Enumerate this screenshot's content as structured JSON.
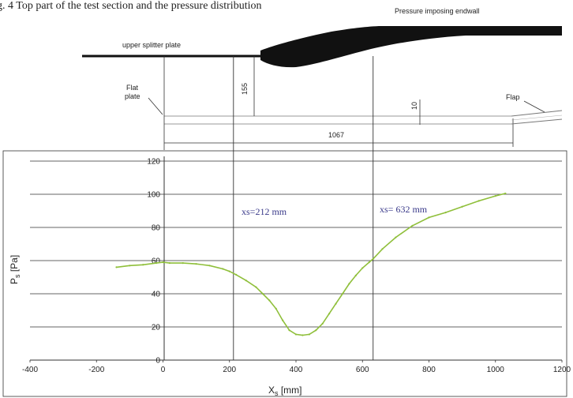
{
  "header_fragment": "g. 4   Top  part of the test section and the  pressure distribution",
  "sketch": {
    "labels": {
      "endwall": "Pressure imposing endwall",
      "splitter": "upper splitter plate",
      "flat_plate_line1": "Flat",
      "flat_plate_line2": "plate",
      "flap": "Flap",
      "dim_155": "155",
      "dim_10": "10",
      "dim_1067": "1067"
    }
  },
  "chart_data": {
    "type": "line",
    "title": "",
    "xlabel_main": "X",
    "xlabel_sub": "s",
    "xlabel_unit": " [mm]",
    "ylabel_main": "P",
    "ylabel_sub": "s",
    "ylabel_unit": " [Pa]",
    "xlim": [
      -400,
      1200
    ],
    "ylim": [
      0,
      120
    ],
    "xticks": [
      -400,
      -200,
      0,
      200,
      400,
      600,
      800,
      1000,
      1200
    ],
    "yticks": [
      0,
      20,
      40,
      60,
      80,
      100,
      120
    ],
    "grid": "horizontal",
    "line_color": "#8fbf3a",
    "vertical_markers": [
      {
        "x": 212,
        "label": "xs=212 mm"
      },
      {
        "x": 632,
        "label": "xs= 632 mm"
      }
    ],
    "series": [
      {
        "x": [
          -140,
          -100,
          -60,
          -20,
          0,
          20,
          60,
          100,
          140,
          180,
          200,
          220,
          250,
          280,
          300,
          320,
          340,
          360,
          380,
          400,
          420,
          440,
          460,
          480,
          500,
          520,
          540,
          560,
          580,
          600,
          620,
          632,
          660,
          700,
          750,
          800,
          850,
          900,
          950,
          1000,
          1030
        ],
        "values": [
          56,
          57,
          57.5,
          58.5,
          59,
          58.5,
          58.5,
          58,
          57,
          55,
          53.5,
          51.5,
          48,
          44,
          40,
          36,
          31,
          24,
          18,
          15.5,
          15,
          15.5,
          18,
          22,
          28,
          34,
          40,
          46,
          51,
          55.5,
          59,
          61,
          67,
          74,
          81,
          86,
          89,
          92.5,
          96,
          99,
          100.5
        ]
      }
    ]
  }
}
